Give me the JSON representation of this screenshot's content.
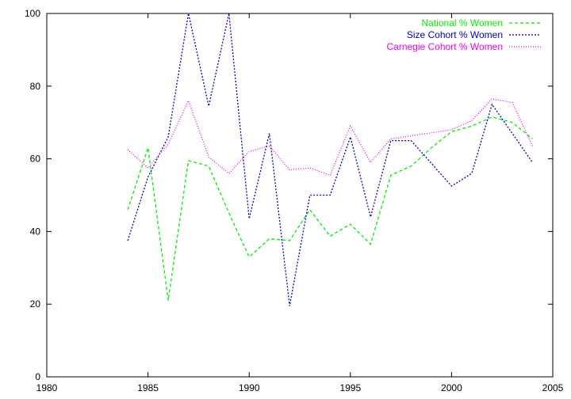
{
  "chart_data": {
    "type": "line",
    "title": "",
    "xlabel": "",
    "ylabel": "",
    "xlim": [
      1980,
      2005
    ],
    "ylim": [
      0,
      100
    ],
    "xticks": [
      "1980",
      "1985",
      "1990",
      "1995",
      "2000",
      "2005"
    ],
    "yticks": [
      "0",
      "20",
      "40",
      "60",
      "80",
      "100"
    ],
    "legend_position": "top-right",
    "grid": false,
    "series": [
      {
        "name": "National % Women",
        "color": "#00ee00",
        "dash": "dashed",
        "x": [
          1984,
          1985,
          1986,
          1987,
          1988,
          1989,
          1990,
          1991,
          1992,
          1993,
          1994,
          1995,
          1996,
          1997,
          1998,
          1999,
          2000,
          2001,
          2002,
          2003,
          2004
        ],
        "y": [
          46,
          63,
          21,
          59.5,
          58,
          45,
          33,
          38,
          37.5,
          46,
          38.7,
          42,
          36.5,
          55.5,
          58,
          63,
          67.5,
          69,
          71.5,
          70,
          65.5
        ]
      },
      {
        "name": "Size Cohort % Women",
        "color": "#0000cc",
        "dash": "dotted",
        "x": [
          1984,
          1985,
          1986,
          1987,
          1988,
          1989,
          1990,
          1991,
          1992,
          1993,
          1994,
          1995,
          1996,
          1997,
          1998,
          2000,
          2001,
          2002,
          2003,
          2004
        ],
        "y": [
          37.5,
          55,
          66,
          100,
          74.5,
          100,
          43.5,
          67,
          19.5,
          50,
          50,
          66,
          44,
          65,
          65,
          52.5,
          56,
          75,
          67,
          59
        ]
      },
      {
        "name": "Carnegie Cohort % Women",
        "color": "#ee00ee",
        "dash": "dotted-fine",
        "x": [
          1984,
          1985,
          1986,
          1987,
          1988,
          1989,
          1990,
          1991,
          1992,
          1993,
          1994,
          1995,
          1996,
          1997,
          2000,
          2001,
          2002,
          2003,
          2004
        ],
        "y": [
          62.5,
          57.5,
          64,
          76,
          60.5,
          56,
          62,
          63.5,
          57,
          57.5,
          55.5,
          69,
          59,
          65.5,
          68,
          70.5,
          76.5,
          75.5,
          63.5
        ]
      }
    ]
  }
}
